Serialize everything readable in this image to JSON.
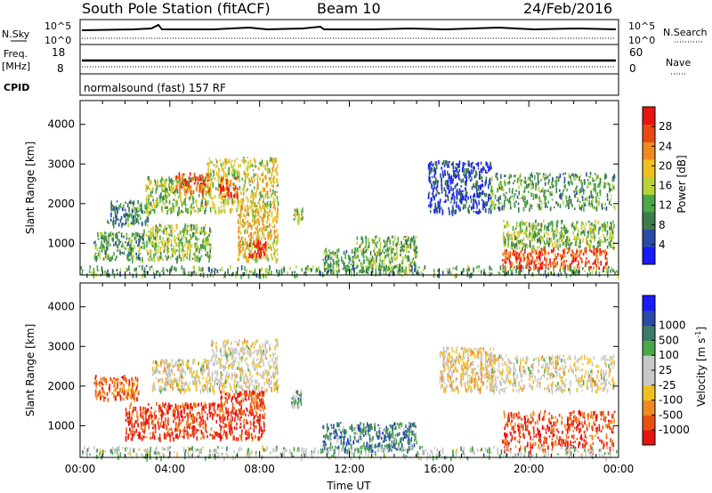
{
  "header": {
    "station": "South Pole Station (fitACF)",
    "beam": "Beam 10",
    "date": "24/Feb/2016"
  },
  "top_panel": {
    "nsky_label": "N.Sky",
    "nsky_ticks": [
      "10^5",
      "10^0"
    ],
    "nsearch_label": "N.Search",
    "freq_label_line1": "Freq.",
    "freq_label_line2": "[MHz]",
    "freq_ticks": [
      "18",
      "8"
    ],
    "nave_ticks": [
      "60",
      "0"
    ],
    "nave_label": "Nave",
    "cpid_label": "CPID",
    "cpid_text": "normalsound (fast) 157 RF"
  },
  "colors": {
    "power": [
      "#1a1aff",
      "#2a4aa8",
      "#3e7a4a",
      "#4aa84a",
      "#b8d23a",
      "#f0c020",
      "#f08a20",
      "#e84a14",
      "#e81414"
    ],
    "velocity": [
      "#e81414",
      "#e8500f",
      "#f08a20",
      "#f0c020",
      "#c8c8c8",
      "#c8c8c8",
      "#4aa84a",
      "#3e7a6a",
      "#2a4aa8",
      "#1a1aff"
    ]
  },
  "chart_data": [
    {
      "type": "heatmap",
      "panel": "power",
      "ylabel": "Slant Range [km]",
      "xlim": [
        0,
        24
      ],
      "ylim": [
        200,
        4600
      ],
      "yticks": [
        1000,
        2000,
        3000,
        4000
      ],
      "colorbar": {
        "label": "Power [dB]",
        "range": [
          0,
          32
        ],
        "ticks": [
          4,
          8,
          12,
          16,
          20,
          24,
          28
        ]
      },
      "echo_regions": [
        {
          "t0": 0.6,
          "t1": 2.8,
          "r0": 600,
          "r1": 1300,
          "level": 0.35
        },
        {
          "t0": 1.2,
          "t1": 3.0,
          "r0": 1500,
          "r1": 2100,
          "level": 0.3
        },
        {
          "t0": 2.8,
          "t1": 5.8,
          "r0": 600,
          "r1": 1500,
          "level": 0.45
        },
        {
          "t0": 2.9,
          "t1": 5.6,
          "r0": 1800,
          "r1": 2700,
          "level": 0.45
        },
        {
          "t0": 4.2,
          "t1": 5.8,
          "r0": 2300,
          "r1": 2800,
          "level": 0.8
        },
        {
          "t0": 5.6,
          "t1": 8.8,
          "r0": 1800,
          "r1": 3200,
          "level": 0.55
        },
        {
          "t0": 6.2,
          "t1": 7.0,
          "r0": 2200,
          "r1": 2700,
          "level": 0.9
        },
        {
          "t0": 7.0,
          "t1": 8.8,
          "r0": 600,
          "r1": 2000,
          "level": 0.6
        },
        {
          "t0": 7.5,
          "t1": 8.3,
          "r0": 700,
          "r1": 1100,
          "level": 0.95
        },
        {
          "t0": 9.5,
          "t1": 9.9,
          "r0": 1500,
          "r1": 1900,
          "level": 0.45
        },
        {
          "t0": 10.8,
          "t1": 12.2,
          "r0": 300,
          "r1": 900,
          "level": 0.35
        },
        {
          "t0": 12.2,
          "t1": 15.0,
          "r0": 300,
          "r1": 1200,
          "level": 0.4
        },
        {
          "t0": 15.5,
          "t1": 18.3,
          "r0": 1800,
          "r1": 3100,
          "level": 0.15
        },
        {
          "t0": 18.2,
          "t1": 23.8,
          "r0": 1900,
          "r1": 2800,
          "level": 0.35
        },
        {
          "t0": 18.8,
          "t1": 23.8,
          "r0": 900,
          "r1": 1600,
          "level": 0.45
        },
        {
          "t0": 18.8,
          "t1": 23.5,
          "r0": 400,
          "r1": 900,
          "level": 0.85
        },
        {
          "t0": 0.0,
          "t1": 24.0,
          "r0": 220,
          "r1": 450,
          "level": 0.35
        }
      ]
    },
    {
      "type": "heatmap",
      "panel": "velocity",
      "xlabel": "Time UT",
      "ylabel": "Slant Range [km]",
      "xlim": [
        0,
        24
      ],
      "xticks": [
        "00:00",
        "04:00",
        "08:00",
        "12:00",
        "16:00",
        "20:00",
        "00:00"
      ],
      "ylim": [
        200,
        4600
      ],
      "yticks": [
        1000,
        2000,
        3000,
        4000
      ],
      "colorbar": {
        "label_main": "Velocity [m s",
        "label_sup": "-1",
        "label_end": "]",
        "ticks": [
          "-1000",
          "-500",
          "-100",
          "-25",
          "25",
          "100",
          "500",
          "1000"
        ]
      },
      "echo_regions": [
        {
          "t0": 0.6,
          "t1": 2.6,
          "r0": 1700,
          "r1": 2300,
          "level": 0.2
        },
        {
          "t0": 2.0,
          "t1": 6.2,
          "r0": 700,
          "r1": 1600,
          "level": 0.1
        },
        {
          "t0": 3.2,
          "t1": 5.8,
          "r0": 1900,
          "r1": 2700,
          "level": 0.45
        },
        {
          "t0": 5.8,
          "t1": 8.8,
          "r0": 1900,
          "r1": 3200,
          "level": 0.45
        },
        {
          "t0": 6.2,
          "t1": 8.2,
          "r0": 700,
          "r1": 1900,
          "level": 0.12
        },
        {
          "t0": 9.4,
          "t1": 9.9,
          "r0": 1500,
          "r1": 1900,
          "level": 0.65
        },
        {
          "t0": 10.8,
          "t1": 15.0,
          "r0": 400,
          "r1": 1100,
          "level": 0.75
        },
        {
          "t0": 16.0,
          "t1": 18.5,
          "r0": 1900,
          "r1": 3000,
          "level": 0.4
        },
        {
          "t0": 18.2,
          "t1": 23.8,
          "r0": 1900,
          "r1": 2800,
          "level": 0.45
        },
        {
          "t0": 18.8,
          "t1": 23.8,
          "r0": 400,
          "r1": 1400,
          "level": 0.12
        },
        {
          "t0": 0.0,
          "t1": 24.0,
          "r0": 220,
          "r1": 500,
          "level": 0.55
        }
      ]
    }
  ]
}
